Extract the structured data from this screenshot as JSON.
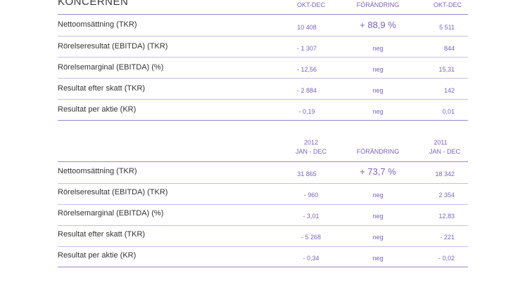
{
  "section1": {
    "title": "KONCERNEN",
    "headers": [
      "OKT-DEC",
      "FÖRÄNDRING",
      "OKT-DEC"
    ],
    "rows": [
      {
        "label": "Nettoomsättning (TKR)",
        "current": "10 408",
        "change": "+ 88,9 %",
        "previous": "5 511"
      },
      {
        "label": "Rörelseresultat (EBITDA) (TKR)",
        "current": "- 1 307",
        "change": "neg",
        "previous": "844"
      },
      {
        "label": "Rörelsemarginal (EBITDA) (%)",
        "current": "- 12,56",
        "change": "neg",
        "previous": "15,31"
      },
      {
        "label": "Resultat efter skatt (TKR)",
        "current": "- 2 884",
        "change": "neg",
        "previous": "142"
      },
      {
        "label": "Resultat per aktie (KR)",
        "current": "- 0,19",
        "change": "neg",
        "previous": "0,01"
      }
    ]
  },
  "section2": {
    "headers": {
      "current_year": "2012",
      "current_period": "JAN - DEC",
      "change": "FÖRÄNDRING",
      "previous_year": "2011",
      "previous_period": "JAN - DEC"
    },
    "rows": [
      {
        "label": "Nettoomsättning (TKR)",
        "current": "31 865",
        "change": "+ 73,7 %",
        "previous": "18 342"
      },
      {
        "label": "Rörelseresultat (EBITDA) (TKR)",
        "current": "- 960",
        "change": "neg",
        "previous": "2 354"
      },
      {
        "label": "Rörelsemarginal (EBITDA) (%)",
        "current": "- 3,01",
        "change": "neg",
        "previous": "12,83"
      },
      {
        "label": "Resultat efter skatt (TKR)",
        "current": "- 5 268",
        "change": "neg",
        "previous": "- 221"
      },
      {
        "label": "Resultat per aktie (KR)",
        "current": "- 0,34",
        "change": "neg",
        "previous": "- 0,02"
      }
    ]
  }
}
